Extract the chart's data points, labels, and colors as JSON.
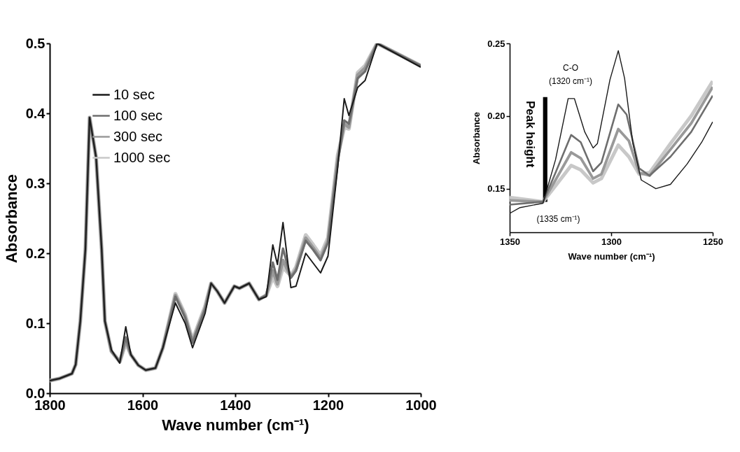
{
  "chart_data": [
    {
      "type": "line",
      "xlabel": "Wave number (cm⁻¹)",
      "ylabel": "Absorbance",
      "xlim": [
        1800,
        1000
      ],
      "xticks": [
        1800,
        1600,
        1400,
        1200,
        1000
      ],
      "ylim": [
        0,
        0.5
      ],
      "yticks": [
        {
          "value": 0,
          "label": "0.0"
        },
        0.1,
        0.2,
        0.3,
        0.4,
        0.5
      ],
      "grid": false,
      "legend": "top left",
      "marker": "none",
      "line_style": "solid",
      "x": [
        1800,
        1779,
        1752,
        1744,
        1734,
        1723,
        1714,
        1700,
        1688,
        1681,
        1667,
        1649,
        1636,
        1625,
        1609,
        1593,
        1572,
        1556,
        1529,
        1508,
        1492,
        1465,
        1452,
        1439,
        1423,
        1402,
        1391,
        1370,
        1349,
        1333,
        1319,
        1309,
        1297,
        1280,
        1269,
        1248,
        1232,
        1216,
        1200,
        1179,
        1165,
        1155,
        1136,
        1120,
        1094,
        1000
      ],
      "series": [
        {
          "name": "10 sec",
          "color": "#1a1a1a",
          "values": [
            0.018,
            0.021,
            0.028,
            0.041,
            0.103,
            0.206,
            0.394,
            0.337,
            0.206,
            0.103,
            0.062,
            0.043,
            0.095,
            0.055,
            0.04,
            0.033,
            0.036,
            0.065,
            0.129,
            0.1,
            0.065,
            0.114,
            0.157,
            0.146,
            0.129,
            0.153,
            0.15,
            0.157,
            0.134,
            0.138,
            0.212,
            0.184,
            0.244,
            0.151,
            0.153,
            0.2,
            0.186,
            0.172,
            0.196,
            0.323,
            0.421,
            0.397,
            0.437,
            0.447,
            0.5,
            0.466
          ]
        },
        {
          "name": "100 sec",
          "color": "#6e6e6e",
          "values": [
            0.018,
            0.021,
            0.028,
            0.041,
            0.103,
            0.206,
            0.394,
            0.337,
            0.206,
            0.103,
            0.06,
            0.045,
            0.08,
            0.055,
            0.04,
            0.033,
            0.036,
            0.065,
            0.138,
            0.108,
            0.072,
            0.12,
            0.157,
            0.146,
            0.129,
            0.153,
            0.15,
            0.157,
            0.134,
            0.14,
            0.187,
            0.162,
            0.207,
            0.165,
            0.175,
            0.218,
            0.205,
            0.19,
            0.215,
            0.33,
            0.39,
            0.385,
            0.45,
            0.46,
            0.5,
            0.468
          ]
        },
        {
          "name": "300 sec",
          "color": "#999999",
          "values": [
            0.018,
            0.021,
            0.028,
            0.041,
            0.103,
            0.206,
            0.394,
            0.337,
            0.206,
            0.103,
            0.06,
            0.045,
            0.075,
            0.055,
            0.04,
            0.033,
            0.036,
            0.065,
            0.14,
            0.11,
            0.074,
            0.122,
            0.157,
            0.146,
            0.129,
            0.153,
            0.15,
            0.157,
            0.134,
            0.14,
            0.175,
            0.156,
            0.19,
            0.166,
            0.177,
            0.222,
            0.208,
            0.193,
            0.218,
            0.335,
            0.385,
            0.38,
            0.455,
            0.465,
            0.5,
            0.468
          ]
        },
        {
          "name": "1000 sec",
          "color": "#c8c8c8",
          "values": [
            0.018,
            0.021,
            0.028,
            0.041,
            0.103,
            0.206,
            0.394,
            0.337,
            0.206,
            0.103,
            0.06,
            0.045,
            0.072,
            0.055,
            0.04,
            0.033,
            0.036,
            0.065,
            0.142,
            0.112,
            0.076,
            0.124,
            0.157,
            0.146,
            0.129,
            0.153,
            0.15,
            0.157,
            0.134,
            0.14,
            0.166,
            0.153,
            0.18,
            0.168,
            0.18,
            0.226,
            0.212,
            0.197,
            0.222,
            0.34,
            0.38,
            0.378,
            0.458,
            0.468,
            0.5,
            0.468
          ]
        }
      ]
    },
    {
      "type": "line",
      "xlabel": "Wave number (cm⁻¹)",
      "ylabel": "Absorbance",
      "xlim": [
        1350,
        1250
      ],
      "xticks": [
        1350,
        1300,
        1250
      ],
      "ylim": [
        0.12,
        0.25
      ],
      "yticks": [
        {
          "value": 0.15,
          "label": "0.15"
        },
        {
          "value": 0.2,
          "label": "0.20"
        },
        {
          "value": 0.25,
          "label": "0.25"
        }
      ],
      "grid": false,
      "marker": "none",
      "line_style": "solid",
      "annotations": [
        "C-O",
        "(1320 cm⁻¹)",
        "(1335 cm⁻¹)",
        "Peak height"
      ],
      "series": [
        {
          "color": "#1a1a1a",
          "x": [
            1350,
            1344.9,
            1333.6,
            1327.4,
            1321.2,
            1318.1,
            1313,
            1308.9,
            1306.8,
            1300.6,
            1296.5,
            1293.4,
            1289.3,
            1285.2,
            1278,
            1270.8,
            1262.6,
            1255.4,
            1250
          ],
          "values": [
            0.133,
            0.137,
            0.14,
            0.17,
            0.212,
            0.212,
            0.189,
            0.178,
            0.181,
            0.225,
            0.245,
            0.226,
            0.181,
            0.156,
            0.15,
            0.153,
            0.167,
            0.182,
            0.196
          ]
        },
        {
          "color": "#6e6e6e",
          "x": [
            1350,
            1333.6,
            1327.4,
            1319.7,
            1315,
            1308.9,
            1304.8,
            1296.5,
            1292.4,
            1286.2,
            1281.1,
            1270.8,
            1260.6,
            1250
          ],
          "values": [
            0.139,
            0.141,
            0.161,
            0.187,
            0.182,
            0.162,
            0.168,
            0.208,
            0.201,
            0.164,
            0.159,
            0.172,
            0.189,
            0.214
          ]
        },
        {
          "color": "#999999",
          "x": [
            1350,
            1333.6,
            1327.4,
            1319.7,
            1315,
            1308.9,
            1304.8,
            1296.5,
            1291.3,
            1286.2,
            1281.1,
            1270.8,
            1260.6,
            1250
          ],
          "values": [
            0.142,
            0.141,
            0.156,
            0.175,
            0.171,
            0.157,
            0.16,
            0.191,
            0.183,
            0.161,
            0.159,
            0.177,
            0.195,
            0.22
          ]
        },
        {
          "color": "#c8c8c8",
          "x": [
            1350,
            1333.6,
            1327.4,
            1319.7,
            1315,
            1308.9,
            1304.8,
            1296.5,
            1291.3,
            1286.2,
            1281.1,
            1270.8,
            1260.6,
            1250
          ],
          "values": [
            0.144,
            0.141,
            0.152,
            0.166,
            0.163,
            0.154,
            0.157,
            0.18,
            0.172,
            0.16,
            0.161,
            0.181,
            0.2,
            0.224
          ]
        },
        {
          "color": "#000000",
          "x": [
            1332.5,
            1332.5
          ],
          "values": [
            0.141,
            0.213
          ]
        }
      ]
    }
  ]
}
